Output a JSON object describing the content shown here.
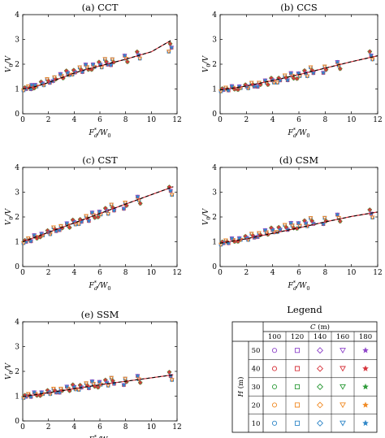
{
  "chart_data": [
    {
      "type": "scatter",
      "title": "(a) CCT",
      "xlim": [
        0,
        12
      ],
      "ylim": [
        0,
        4
      ],
      "xticks": [
        0,
        2,
        4,
        6,
        8,
        10,
        12
      ],
      "yticks": [
        0,
        1,
        2,
        3,
        4
      ],
      "fit": [
        [
          0,
          1.0
        ],
        [
          0.5,
          1.04
        ],
        [
          1,
          1.1
        ],
        [
          2,
          1.26
        ],
        [
          3,
          1.45
        ],
        [
          4,
          1.64
        ],
        [
          5,
          1.8
        ],
        [
          6,
          1.93
        ],
        [
          8,
          2.2
        ],
        [
          10,
          2.5
        ],
        [
          11.5,
          2.95
        ]
      ],
      "points": [
        [
          0.2,
          1.02
        ],
        [
          0.5,
          1.05
        ],
        [
          0.8,
          1.08
        ],
        [
          1,
          1.12
        ],
        [
          1.5,
          1.22
        ],
        [
          2,
          1.3
        ],
        [
          2.5,
          1.42
        ],
        [
          3,
          1.52
        ],
        [
          3.5,
          1.62
        ],
        [
          4,
          1.7
        ],
        [
          4.5,
          1.78
        ],
        [
          5,
          1.85
        ],
        [
          5.5,
          1.92
        ],
        [
          6,
          1.98
        ],
        [
          6.5,
          2.06
        ],
        [
          7,
          2.12
        ],
        [
          8,
          2.22
        ],
        [
          9,
          2.32
        ],
        [
          11.5,
          2.72
        ]
      ]
    },
    {
      "type": "scatter",
      "title": "(b) CCS",
      "xlim": [
        0,
        12
      ],
      "ylim": [
        0,
        4
      ],
      "xticks": [
        0,
        2,
        4,
        6,
        8,
        10,
        12
      ],
      "yticks": [
        0,
        1,
        2,
        3,
        4
      ],
      "fit": [
        [
          0,
          0.96
        ],
        [
          2,
          1.12
        ],
        [
          4,
          1.34
        ],
        [
          6,
          1.58
        ],
        [
          8,
          1.84
        ],
        [
          10,
          2.1
        ],
        [
          12,
          2.34
        ]
      ],
      "points": [
        [
          0.2,
          0.98
        ],
        [
          0.5,
          1.0
        ],
        [
          1,
          1.03
        ],
        [
          1.5,
          1.06
        ],
        [
          2,
          1.1
        ],
        [
          2.5,
          1.15
        ],
        [
          3,
          1.2
        ],
        [
          3.5,
          1.26
        ],
        [
          4,
          1.32
        ],
        [
          4.5,
          1.38
        ],
        [
          5,
          1.45
        ],
        [
          5.5,
          1.5
        ],
        [
          6,
          1.56
        ],
        [
          6.5,
          1.63
        ],
        [
          7,
          1.72
        ],
        [
          8,
          1.82
        ],
        [
          9,
          1.95
        ],
        [
          11.5,
          2.3
        ]
      ]
    },
    {
      "type": "scatter",
      "title": "(c) CST",
      "xlim": [
        0,
        12
      ],
      "ylim": [
        0,
        4
      ],
      "xticks": [
        0,
        2,
        4,
        6,
        8,
        10,
        12
      ],
      "yticks": [
        0,
        1,
        2,
        3,
        4
      ],
      "fit": [
        [
          0,
          1.0
        ],
        [
          2,
          1.38
        ],
        [
          4,
          1.76
        ],
        [
          6,
          2.14
        ],
        [
          8,
          2.52
        ],
        [
          10,
          2.9
        ],
        [
          11.7,
          3.22
        ]
      ],
      "points": [
        [
          0.2,
          1.02
        ],
        [
          0.5,
          1.08
        ],
        [
          1,
          1.18
        ],
        [
          1.5,
          1.28
        ],
        [
          2,
          1.38
        ],
        [
          2.5,
          1.48
        ],
        [
          3,
          1.58
        ],
        [
          3.5,
          1.66
        ],
        [
          4,
          1.76
        ],
        [
          4.5,
          1.84
        ],
        [
          5,
          1.94
        ],
        [
          5.5,
          2.04
        ],
        [
          6,
          2.14
        ],
        [
          6.5,
          2.24
        ],
        [
          7,
          2.34
        ],
        [
          8,
          2.5
        ],
        [
          9,
          2.68
        ],
        [
          11.5,
          3.0
        ]
      ]
    },
    {
      "type": "scatter",
      "title": "(d) CSM",
      "xlim": [
        0,
        12
      ],
      "ylim": [
        0,
        4
      ],
      "xticks": [
        0,
        2,
        4,
        6,
        8,
        10,
        12
      ],
      "yticks": [
        0,
        1,
        2,
        3,
        4
      ],
      "fit": [
        [
          0,
          0.94
        ],
        [
          2,
          1.12
        ],
        [
          4,
          1.34
        ],
        [
          6,
          1.56
        ],
        [
          8,
          1.8
        ],
        [
          10,
          2.02
        ],
        [
          12,
          2.2
        ]
      ],
      "points": [
        [
          0.2,
          0.96
        ],
        [
          0.5,
          1.0
        ],
        [
          1,
          1.05
        ],
        [
          1.5,
          1.1
        ],
        [
          2,
          1.15
        ],
        [
          2.5,
          1.22
        ],
        [
          3,
          1.3
        ],
        [
          3.5,
          1.38
        ],
        [
          4,
          1.44
        ],
        [
          4.5,
          1.52
        ],
        [
          5,
          1.58
        ],
        [
          5.5,
          1.62
        ],
        [
          6,
          1.68
        ],
        [
          6.5,
          1.74
        ],
        [
          7,
          1.8
        ],
        [
          8,
          1.88
        ],
        [
          9,
          1.96
        ],
        [
          11.5,
          2.08
        ]
      ]
    },
    {
      "type": "scatter",
      "title": "(e) SSM",
      "xlim": [
        0,
        12
      ],
      "ylim": [
        0,
        4
      ],
      "xticks": [
        0,
        2,
        4,
        6,
        8,
        10,
        12
      ],
      "yticks": [
        0,
        1,
        2,
        3,
        4
      ],
      "fit": [
        [
          0,
          0.98
        ],
        [
          2,
          1.14
        ],
        [
          4,
          1.3
        ],
        [
          6,
          1.46
        ],
        [
          8,
          1.6
        ],
        [
          10,
          1.74
        ],
        [
          11.7,
          1.86
        ]
      ],
      "points": [
        [
          0.2,
          1.0
        ],
        [
          0.5,
          1.03
        ],
        [
          1,
          1.07
        ],
        [
          1.5,
          1.11
        ],
        [
          2,
          1.16
        ],
        [
          2.5,
          1.2
        ],
        [
          3,
          1.25
        ],
        [
          3.5,
          1.3
        ],
        [
          4,
          1.34
        ],
        [
          4.5,
          1.38
        ],
        [
          5,
          1.42
        ],
        [
          5.5,
          1.46
        ],
        [
          6,
          1.5
        ],
        [
          6.5,
          1.54
        ],
        [
          7,
          1.58
        ],
        [
          8,
          1.62
        ],
        [
          9,
          1.68
        ],
        [
          11.5,
          1.76
        ]
      ]
    }
  ],
  "axis_labels": {
    "x": "F*d/W0",
    "y": "V0/V"
  },
  "legend": {
    "title": "Legend",
    "col_header": "C (m)",
    "row_header": "H (m)",
    "columns": [
      "100",
      "120",
      "140",
      "160",
      "180"
    ],
    "rows": [
      "50",
      "40",
      "30",
      "20",
      "10"
    ],
    "row_colors": [
      "#8e44c9",
      "#d6333b",
      "#2e9b3a",
      "#f08a24",
      "#2f86c8"
    ],
    "column_markers": [
      "circle-icon",
      "square-icon",
      "diamond-icon",
      "triangle-down-icon",
      "star-icon"
    ]
  }
}
